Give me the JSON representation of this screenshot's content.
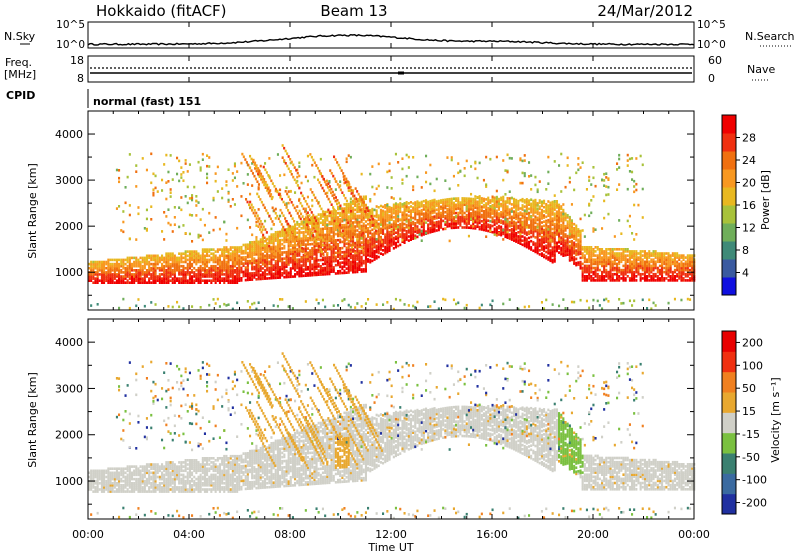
{
  "header": {
    "radar": "Hokkaido (fitACF)",
    "beam": "Beam 13",
    "date": "24/Mar/2012"
  },
  "nsky_panel": {
    "left_label": "N.Sky",
    "right_label": "N.Search",
    "ticks": [
      "10^5",
      "10^0"
    ]
  },
  "freq_panel": {
    "left_label_1": "Freq.",
    "left_label_2": "[MHz]",
    "right_label": "Nave",
    "left_ticks": [
      "18",
      "8"
    ],
    "right_ticks": [
      "60",
      "0"
    ]
  },
  "cpid_panel": {
    "label": "CPID",
    "mode": "normal (fast) 151"
  },
  "chart_data": [
    {
      "type": "heatmap",
      "parameter": "power",
      "ylabel": "Slant Range [km]",
      "ylim": [
        180,
        4500
      ],
      "y_ticks": [
        "1000",
        "2000",
        "3000",
        "4000"
      ],
      "colorbar": {
        "label": "Power [dB]",
        "range": [
          0,
          32
        ],
        "ticks": [
          "4",
          "8",
          "12",
          "16",
          "20",
          "24",
          "28"
        ],
        "colors": [
          "#1010e0",
          "#3a5aa0",
          "#3f8a78",
          "#6fae5a",
          "#a8c23a",
          "#e8b820",
          "#f89820",
          "#f07010",
          "#f03010",
          "#f00000"
        ]
      }
    },
    {
      "type": "heatmap",
      "parameter": "velocity",
      "ylabel": "Slant Range [km]",
      "ylim": [
        180,
        4500
      ],
      "y_ticks": [
        "1000",
        "2000",
        "3000",
        "4000"
      ],
      "colorbar": {
        "label": "Velocity [m s⁻¹]",
        "range": [
          -250,
          250
        ],
        "ticks": [
          "200",
          "100",
          "50",
          "15",
          "-15",
          "-50",
          "-100",
          "-200"
        ],
        "colors": [
          "#2030a0",
          "#3a6aa0",
          "#3a8070",
          "#7ac040",
          "#d0d0c8",
          "#e8a830",
          "#f08020",
          "#f03010",
          "#e80000"
        ]
      }
    }
  ],
  "x_axis": {
    "label": "Time UT",
    "ticks": [
      "00:00",
      "04:00",
      "08:00",
      "12:00",
      "16:00",
      "20:00",
      "00:00"
    ],
    "range_hours": [
      0,
      24
    ]
  },
  "colors": {
    "ground_scatter": "#c8c8c0",
    "frame": "#000000"
  }
}
